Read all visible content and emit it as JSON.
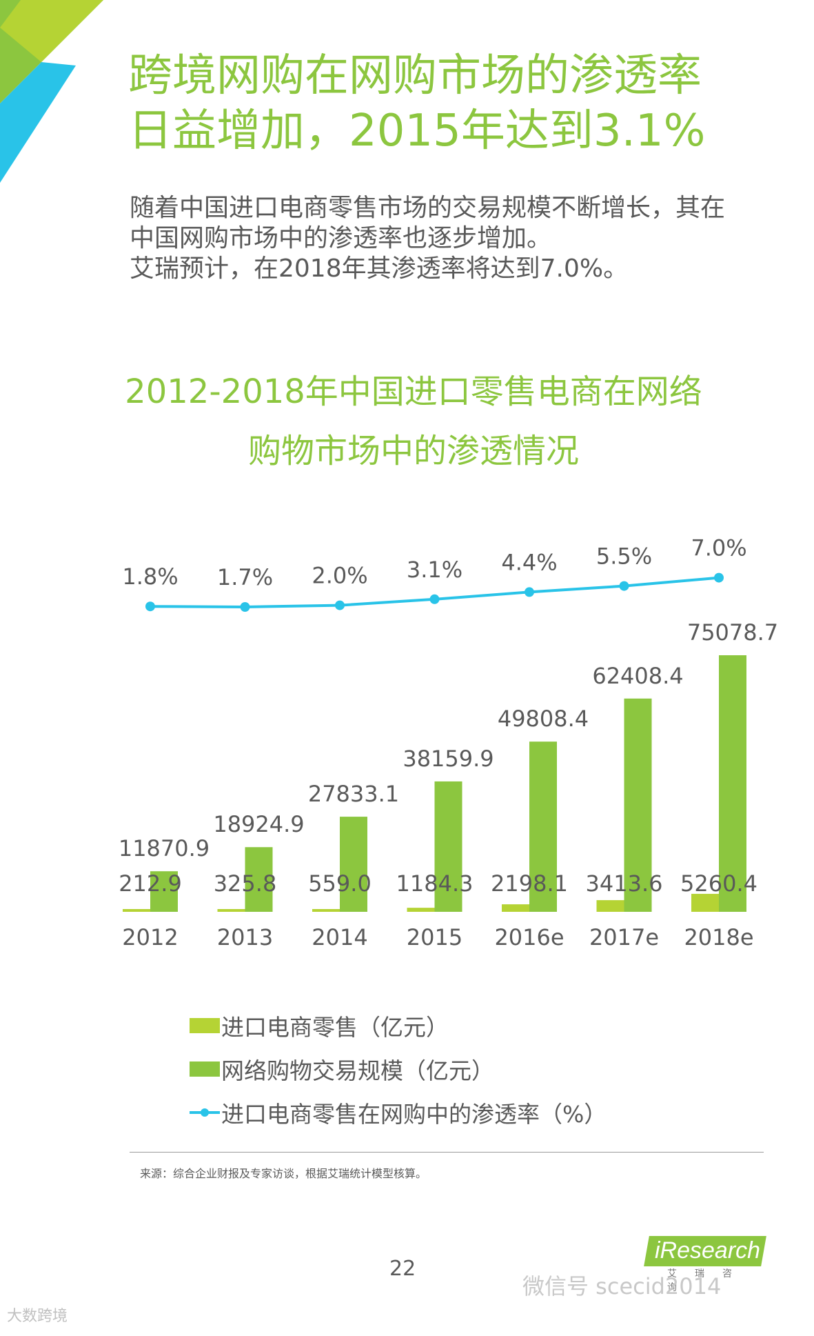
{
  "headline": {
    "line1": "跨境网购在网购市场的渗透率",
    "line2": "日益增加，2015年达到3.1%"
  },
  "intro": {
    "line1": "随着中国进口电商零售市场的交易规模不断增长，其在",
    "line2": "中国网购市场中的渗透率也逐步增加。",
    "line3": "艾瑞预计，在2018年其渗透率将达到7.0%。"
  },
  "chart_title": {
    "line1": "2012-2018年中国进口零售电商在网络",
    "line2": "购物市场中的渗透情况"
  },
  "chart_data": {
    "type": "bar",
    "title": "2012-2018年中国进口零售电商在网络购物市场中的渗透情况",
    "categories": [
      "2012",
      "2013",
      "2014",
      "2015",
      "2016e",
      "2017e",
      "2018e"
    ],
    "series": [
      {
        "name": "进口电商零售（亿元）",
        "type": "bar",
        "color": "#b5d334",
        "values": [
          212.9,
          325.8,
          559.0,
          1184.3,
          2198.1,
          3413.6,
          5260.4
        ],
        "labels": [
          "212.9",
          "325.8",
          "559.0",
          "1184.3",
          "2198.1",
          "3413.6",
          "5260.4"
        ]
      },
      {
        "name": "网络购物交易规模（亿元）",
        "type": "bar",
        "color": "#8cc63f",
        "values": [
          11870.9,
          18924.9,
          27833.1,
          38159.9,
          49808.4,
          62408.4,
          75078.7
        ],
        "labels": [
          "11870.9",
          "18924.9",
          "27833.1",
          "38159.9",
          "49808.4",
          "62408.4",
          "75078.7"
        ]
      },
      {
        "name": "进口电商零售在网购中的渗透率（%）",
        "type": "line",
        "color": "#29c3e8",
        "values": [
          1.8,
          1.7,
          2.0,
          3.1,
          4.4,
          5.5,
          7.0
        ],
        "labels": [
          "1.8%",
          "1.7%",
          "2.0%",
          "3.1%",
          "4.4%",
          "5.5%",
          "7.0%"
        ]
      }
    ],
    "legend": "bottom",
    "grid": false
  },
  "legend": {
    "import_retail": "进口电商零售（亿元）",
    "online_shopping": "网络购物交易规模（亿元）",
    "penetration": "进口电商零售在网购中的渗透率（%）"
  },
  "source_note": "来源：综合企业财报及专家访谈，根据艾瑞统计模型核算。",
  "page_number": "22",
  "logo": {
    "text": "iResearch",
    "sub": "艾瑞咨询"
  },
  "watermark": {
    "text": "微信号 scecid2014",
    "bottom_left": "大数跨境"
  },
  "colors": {
    "accent_green": "#8cc63f",
    "light_green": "#b5d334",
    "blue": "#29c3e8",
    "text": "#595959"
  }
}
